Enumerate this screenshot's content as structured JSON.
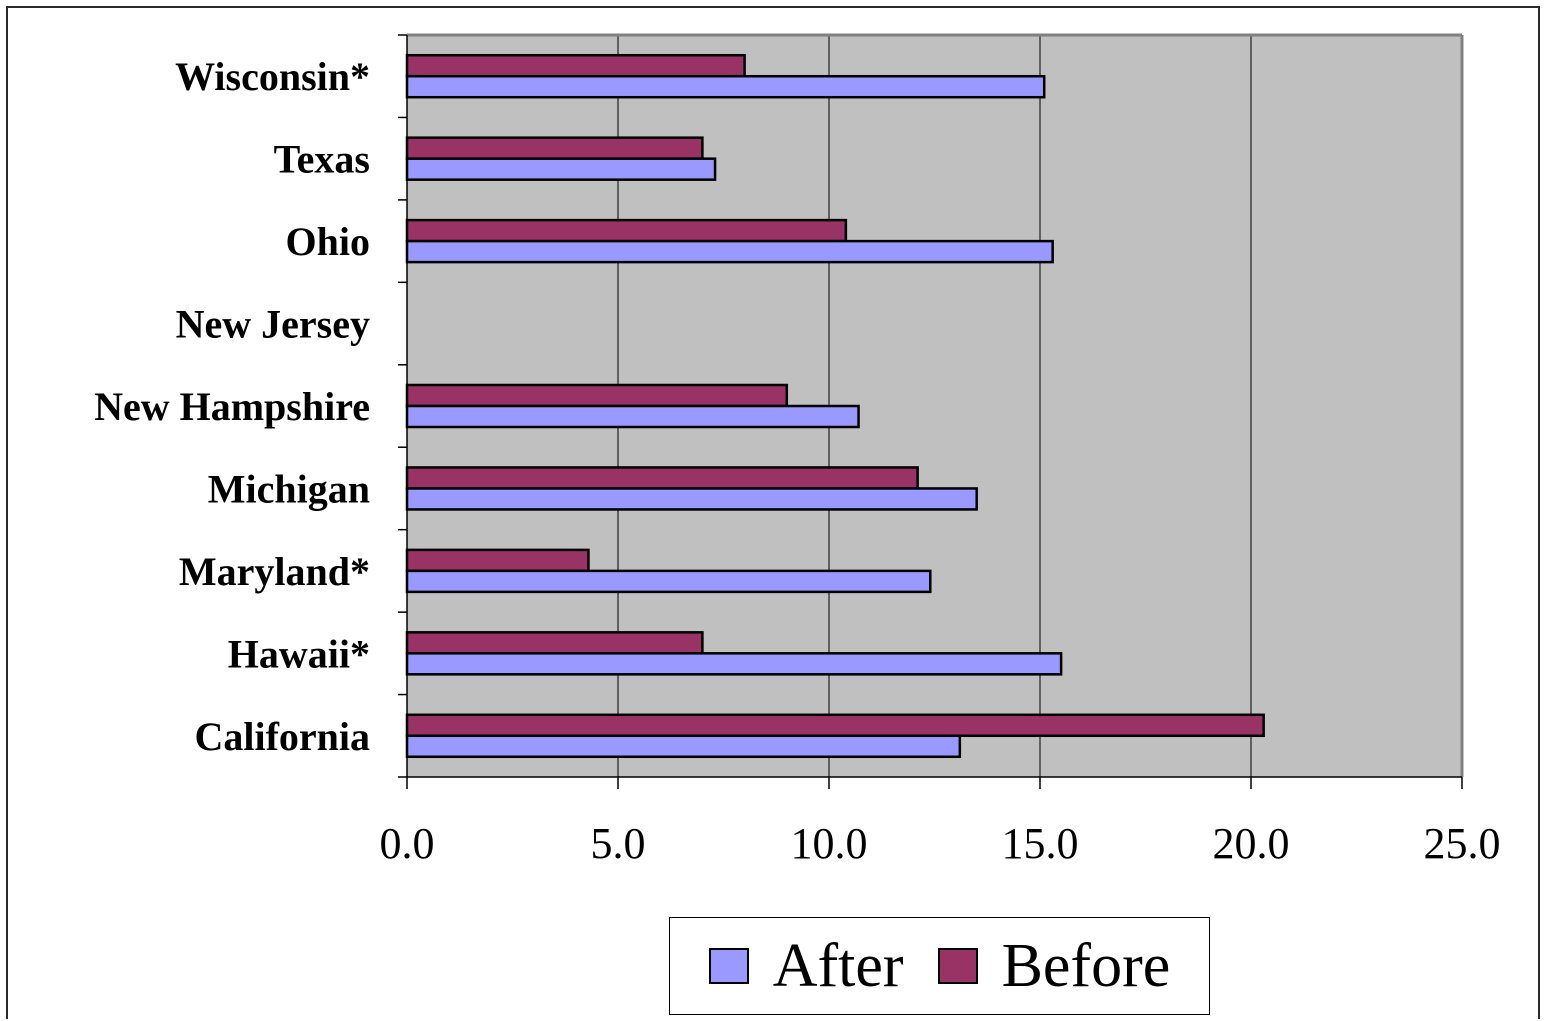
{
  "chart_data": {
    "type": "bar",
    "orientation": "horizontal",
    "categories": [
      "California",
      "Hawaii*",
      "Maryland*",
      "Michigan",
      "New Hampshire",
      "New Jersey",
      "Ohio",
      "Texas",
      "Wisconsin*"
    ],
    "series": [
      {
        "name": "Before",
        "color": "#993366",
        "values": [
          20.3,
          7.0,
          4.3,
          12.1,
          9.0,
          null,
          10.4,
          7.0,
          8.0
        ]
      },
      {
        "name": "After",
        "color": "#9999FF",
        "values": [
          13.1,
          15.5,
          12.4,
          13.5,
          10.7,
          null,
          15.3,
          7.3,
          15.1
        ]
      }
    ],
    "xlim": [
      0,
      25
    ],
    "xticks": [
      "0.0",
      "5.0",
      "10.0",
      "15.0",
      "20.0",
      "25.0"
    ],
    "grid": true,
    "plot_background": "#C0C0C0",
    "legend": {
      "position": "bottom",
      "order": [
        "After",
        "Before"
      ]
    }
  }
}
